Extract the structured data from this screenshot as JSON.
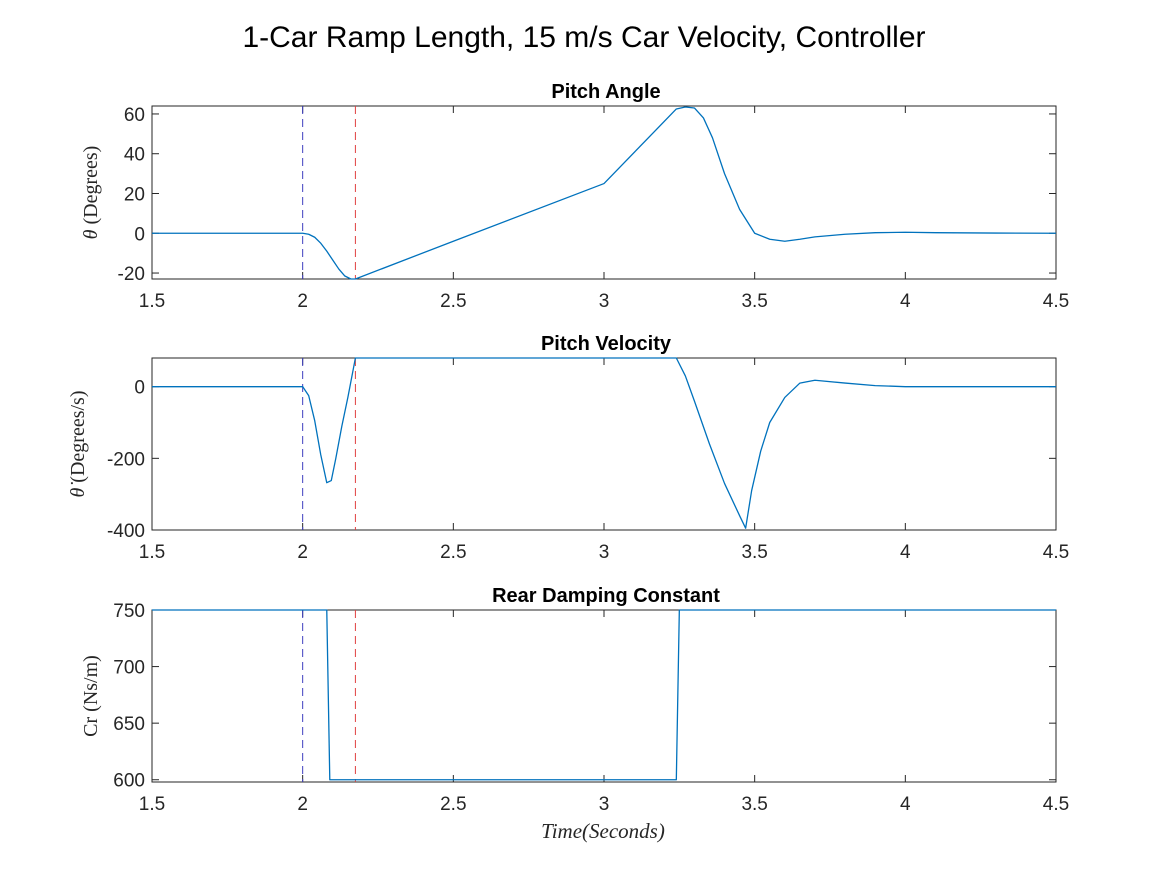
{
  "figure": {
    "title": "1-Car Ramp Length,  15 m/s Car Velocity,  Controller",
    "xlabel": "Time(Seconds)"
  },
  "colors": {
    "series": "#0072BD",
    "blue_marker": "#3F3FBF",
    "red_marker": "#E04040",
    "axes": "#262626"
  },
  "chart_data": [
    {
      "type": "line",
      "title": "Pitch Angle",
      "ylabel_symbol": "θ",
      "ylabel": "(Degrees)",
      "xlim": [
        1.5,
        4.5
      ],
      "ylim": [
        -23,
        64
      ],
      "xticks": [
        1.5,
        2,
        2.5,
        3,
        3.5,
        4,
        4.5
      ],
      "xtick_labels": [
        "1.5",
        "2",
        "2.5",
        "3",
        "3.5",
        "4",
        "4.5"
      ],
      "yticks": [
        -20,
        0,
        20,
        40,
        60
      ],
      "ytick_labels": [
        "-20",
        "0",
        "20",
        "40",
        "60"
      ],
      "vlines": [
        {
          "x": 2.0,
          "style": "dashed",
          "color": "blue"
        },
        {
          "x": 2.175,
          "style": "dashed",
          "color": "red"
        }
      ],
      "series": [
        {
          "x": [
            1.5,
            2.0,
            2.02,
            2.04,
            2.06,
            2.08,
            2.1,
            2.12,
            2.14,
            2.16,
            2.175,
            2.5,
            3.0,
            3.24,
            3.27,
            3.3,
            3.33,
            3.36,
            3.4,
            3.45,
            3.5,
            3.55,
            3.6,
            3.65,
            3.7,
            3.8,
            3.9,
            4.0,
            4.1,
            4.3,
            4.5
          ],
          "y": [
            0,
            0,
            -0.5,
            -2,
            -5,
            -9,
            -13.5,
            -18,
            -21.5,
            -23,
            -23,
            -4,
            25,
            62.5,
            63.5,
            63,
            58,
            48,
            30,
            12,
            0,
            -3,
            -4,
            -3,
            -1.8,
            -0.5,
            0.3,
            0.5,
            0.3,
            0.1,
            0
          ]
        }
      ]
    },
    {
      "type": "line",
      "title": "Pitch Velocity",
      "ylabel_symbol": "θ̇",
      "ylabel": "(Degrees/s)",
      "xlim": [
        1.5,
        4.5
      ],
      "ylim": [
        -400,
        80
      ],
      "xticks": [
        1.5,
        2,
        2.5,
        3,
        3.5,
        4,
        4.5
      ],
      "xtick_labels": [
        "1.5",
        "2",
        "2.5",
        "3",
        "3.5",
        "4",
        "4.5"
      ],
      "yticks": [
        -400,
        -200,
        0
      ],
      "ytick_labels": [
        "-400",
        "-200",
        "0"
      ],
      "vlines": [
        {
          "x": 2.0,
          "style": "dashed",
          "color": "blue"
        },
        {
          "x": 2.175,
          "style": "dashed",
          "color": "red"
        }
      ],
      "series": [
        {
          "x": [
            1.5,
            2.0,
            2.02,
            2.04,
            2.06,
            2.08,
            2.095,
            2.11,
            2.13,
            2.15,
            2.175,
            2.5,
            3.0,
            3.24,
            3.27,
            3.3,
            3.35,
            3.4,
            3.45,
            3.47,
            3.49,
            3.52,
            3.55,
            3.6,
            3.65,
            3.7,
            3.8,
            3.9,
            4.0,
            4.2,
            4.5
          ],
          "y": [
            0,
            0,
            -25,
            -95,
            -190,
            -268,
            -262,
            -200,
            -110,
            -30,
            80,
            80,
            80,
            80,
            30,
            -40,
            -160,
            -270,
            -360,
            -395,
            -290,
            -180,
            -100,
            -30,
            10,
            18,
            10,
            3,
            0,
            0,
            0
          ]
        }
      ]
    },
    {
      "type": "line",
      "title": "Rear Damping Constant",
      "ylabel_symbol": "",
      "ylabel": "Cr (Ns/m)",
      "xlim": [
        1.5,
        4.5
      ],
      "ylim": [
        598,
        750
      ],
      "xticks": [
        1.5,
        2,
        2.5,
        3,
        3.5,
        4,
        4.5
      ],
      "xtick_labels": [
        "1.5",
        "2",
        "2.5",
        "3",
        "3.5",
        "4",
        "4.5"
      ],
      "yticks": [
        600,
        650,
        700,
        750
      ],
      "ytick_labels": [
        "600",
        "650",
        "700",
        "750"
      ],
      "vlines": [
        {
          "x": 2.0,
          "style": "dashed",
          "color": "blue"
        },
        {
          "x": 2.175,
          "style": "dashed",
          "color": "red"
        }
      ],
      "series": [
        {
          "x": [
            1.5,
            2.08,
            2.09,
            3.24,
            3.25,
            4.5
          ],
          "y": [
            750,
            750,
            600,
            600,
            750,
            750
          ]
        }
      ]
    }
  ]
}
